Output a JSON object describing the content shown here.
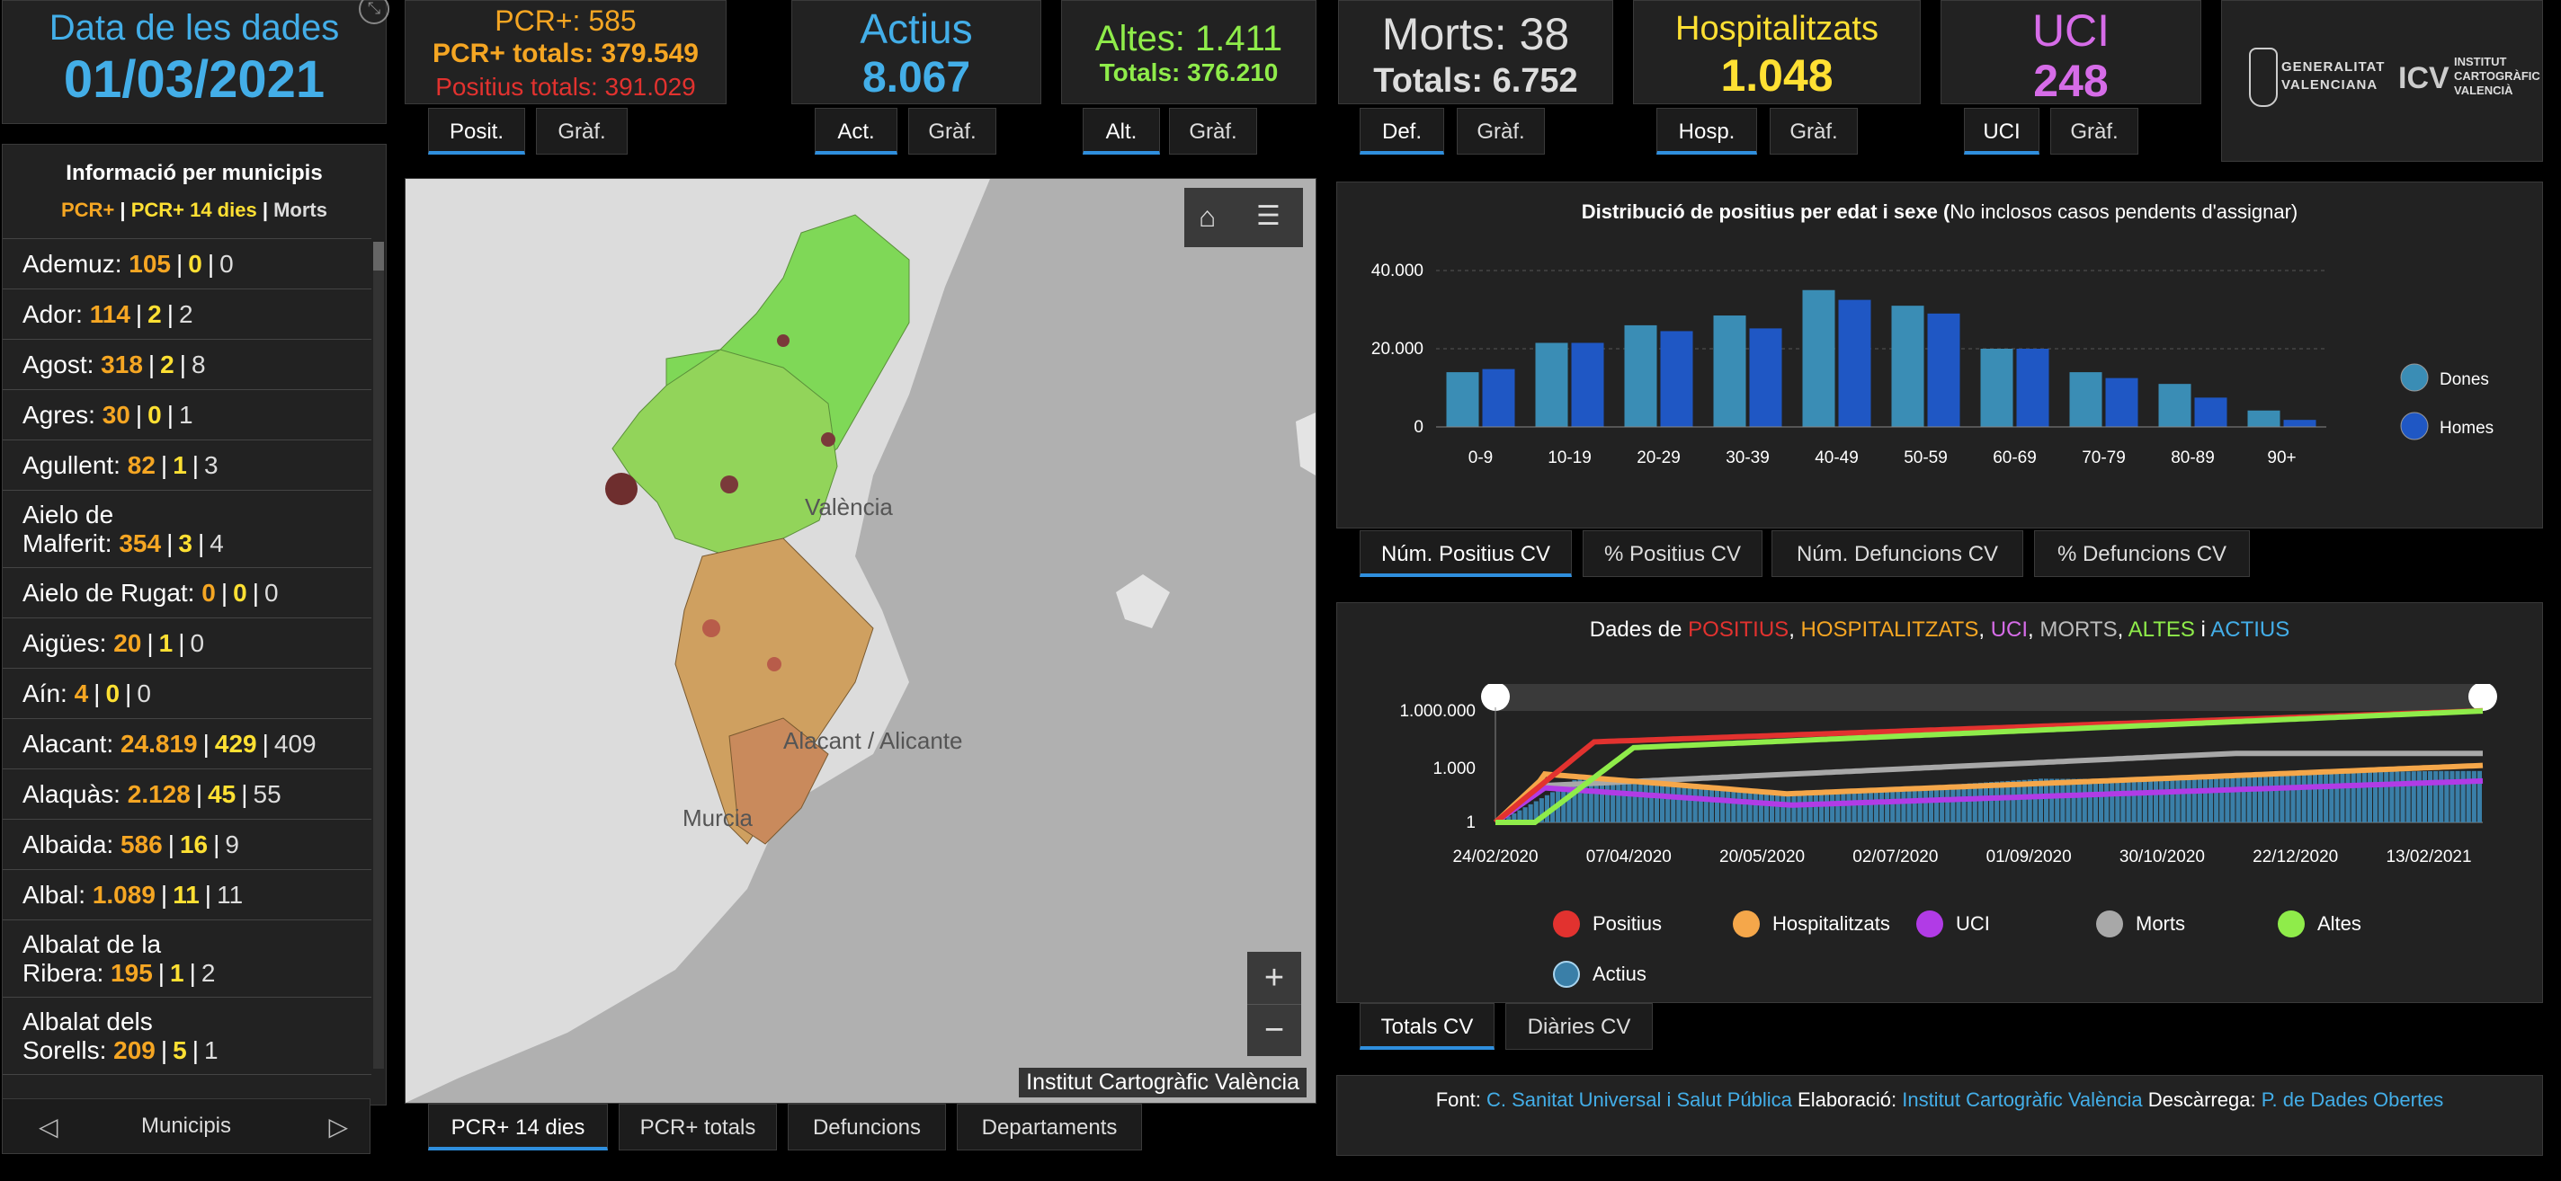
{
  "header": {
    "date_label": "Data de les dades",
    "date_value": "01/03/2021",
    "pcr_label": "PCR+: 585",
    "pcr_totals": "PCR+ totals: 379.549",
    "positius_totals": "Positius totals: 391.029",
    "actius_label": "Actius",
    "actius_value": "8.067",
    "altes_label": "Altes: 1.411",
    "altes_totals": "Totals: 376.210",
    "morts_label": "Morts: 38",
    "morts_totals": "Totals: 6.752",
    "hosp_label": "Hospitalitzats",
    "hosp_value": "1.048",
    "uci_label": "UCI",
    "uci_value": "248",
    "logo_gv": "GENERALITAT VALENCIANA",
    "logo_icv": "INSTITUT CARTOGRÀFIC VALENCIÀ"
  },
  "top_tabs": {
    "posit": "Posit.",
    "graf1": "Gràf.",
    "act": "Act.",
    "graf2": "Gràf.",
    "alt": "Alt.",
    "graf3": "Gràf.",
    "def": "Def.",
    "graf4": "Gràf.",
    "hosp": "Hosp.",
    "graf5": "Gràf.",
    "uci": "UCI",
    "graf6": "Gràf."
  },
  "municipis": {
    "title": "Informació per municipis",
    "legend_pcr": "PCR+",
    "legend_pcr14": "PCR+ 14 dies",
    "legend_morts": "Morts",
    "footer": "Municipis",
    "rows": [
      {
        "name": "Ademuz:",
        "pcr": "105",
        "pcr14": "0",
        "morts": "0"
      },
      {
        "name": "Ador:",
        "pcr": "114",
        "pcr14": "2",
        "morts": "2"
      },
      {
        "name": "Agost:",
        "pcr": "318",
        "pcr14": "2",
        "morts": "8"
      },
      {
        "name": "Agres:",
        "pcr": "30",
        "pcr14": "0",
        "morts": "1"
      },
      {
        "name": "Agullent:",
        "pcr": "82",
        "pcr14": "1",
        "morts": "3"
      },
      {
        "name_l1": "Aielo de",
        "name": "Malferit:",
        "pcr": "354",
        "pcr14": "3",
        "morts": "4"
      },
      {
        "name": "Aielo de Rugat:",
        "pcr": "0",
        "pcr14": "0",
        "morts": "0"
      },
      {
        "name": "Aigües:",
        "pcr": "20",
        "pcr14": "1",
        "morts": "0"
      },
      {
        "name": "Aín:",
        "pcr": "4",
        "pcr14": "0",
        "morts": "0"
      },
      {
        "name": "Alacant:",
        "pcr": "24.819",
        "pcr14": "429",
        "morts": "409"
      },
      {
        "name": "Alaquàs:",
        "pcr": "2.128",
        "pcr14": "45",
        "morts": "55"
      },
      {
        "name": "Albaida:",
        "pcr": "586",
        "pcr14": "16",
        "morts": "9"
      },
      {
        "name": "Albal:",
        "pcr": "1.089",
        "pcr14": "11",
        "morts": "11"
      },
      {
        "name_l1": "Albalat de la",
        "name": "Ribera:",
        "pcr": "195",
        "pcr14": "1",
        "morts": "2"
      },
      {
        "name_l1": "Albalat dels",
        "name": "Sorells:",
        "pcr": "209",
        "pcr14": "5",
        "morts": "1"
      }
    ]
  },
  "map": {
    "label_valencia": "València",
    "label_alacant": "Alacant / Alicante",
    "label_murcia": "Murcia",
    "attribution": "Institut Cartogràfic València",
    "zoom_in": "+",
    "zoom_out": "−"
  },
  "map_tabs": [
    "PCR+ 14 dies",
    "PCR+ totals",
    "Defuncions",
    "Departaments"
  ],
  "age_chart": {
    "title_bold": "Distribució de positius per edat i sexe (",
    "title_rest": "No inclosos casos pendents d'assignar)",
    "tabs": [
      "Núm. Positius CV",
      "% Positius CV",
      "Núm. Defuncions CV",
      "% Defuncions CV"
    ]
  },
  "timeline_chart": {
    "title_prefix": "Dades de",
    "t_positius": "POSITIUS",
    "t_hosp": "HOSPITALITZATS",
    "t_uci": "UCI",
    "t_morts": "MORTS",
    "t_altes": "ALTES",
    "t_i": "i",
    "t_actius": "ACTIUS",
    "tabs": [
      "Totals CV",
      "Diàries CV"
    ],
    "legend": [
      "Positius",
      "Hospitalitzats",
      "UCI",
      "Morts",
      "Altes",
      "Actius"
    ]
  },
  "footer": {
    "font_label": "Font:",
    "font_link": "C. Sanitat Universal i Salut Pública",
    "elab_label": "Elaboració:",
    "elab_link": "Institut Cartogràfic València",
    "desc_label": "Descàrrega:",
    "desc_link": "P. de Dades Obertes"
  },
  "chart_data": [
    {
      "type": "bar",
      "title": "Distribució de positius per edat i sexe (No inclosos casos pendents d'assignar)",
      "categories": [
        "0-9",
        "10-19",
        "20-29",
        "30-39",
        "40-49",
        "50-59",
        "60-69",
        "70-79",
        "80-89",
        "90+"
      ],
      "series": [
        {
          "name": "Dones",
          "color": "#3a8db5",
          "values": [
            14000,
            21500,
            26000,
            28500,
            35000,
            31000,
            20000,
            14000,
            11000,
            4200
          ]
        },
        {
          "name": "Homes",
          "color": "#1f57c4",
          "values": [
            14800,
            21500,
            24500,
            25200,
            32500,
            29000,
            20000,
            12500,
            7500,
            1800
          ]
        }
      ],
      "yticks": [
        "0",
        "20.000",
        "40.000"
      ],
      "ylim": [
        0,
        40000
      ],
      "legend": "right"
    },
    {
      "type": "line",
      "title": "Dades de POSITIUS, HOSPITALITZATS, UCI, MORTS, ALTES i ACTIUS",
      "scale": "log",
      "yticks": [
        "1",
        "1.000",
        "1.000.000"
      ],
      "xticks": [
        "24/02/2020",
        "07/04/2020",
        "20/05/2020",
        "02/07/2020",
        "01/09/2020",
        "30/10/2020",
        "22/12/2020",
        "13/02/2021"
      ],
      "series": [
        {
          "name": "Positius",
          "color": "#e2322f"
        },
        {
          "name": "Hospitalitzats",
          "color": "#f5a74a"
        },
        {
          "name": "UCI",
          "color": "#b13be6"
        },
        {
          "name": "Morts",
          "color": "#a8a8a8"
        },
        {
          "name": "Altes",
          "color": "#8fec4a"
        },
        {
          "name": "Actius",
          "color": "#3a7fa8"
        }
      ],
      "legend": "bottom"
    }
  ]
}
